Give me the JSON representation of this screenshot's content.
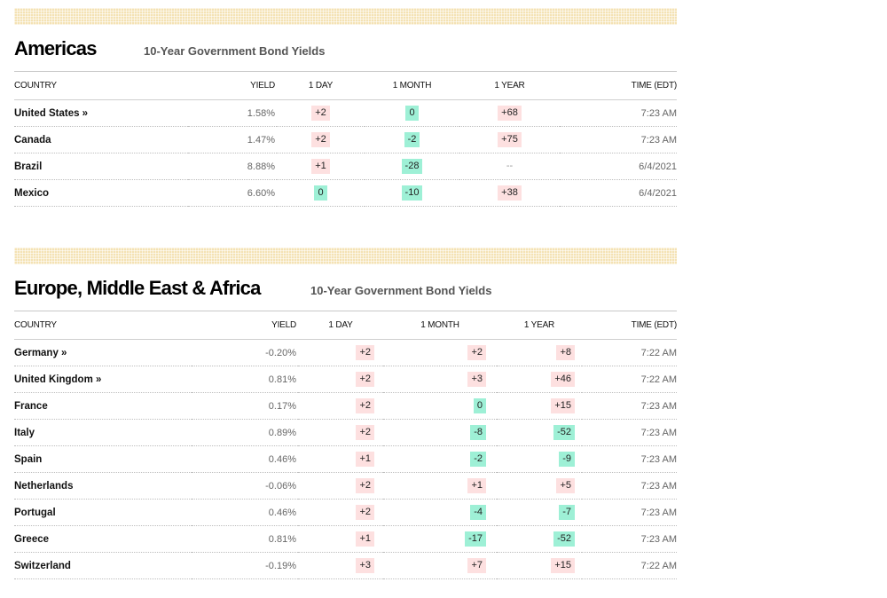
{
  "colors": {
    "up": "#fde0e0",
    "down": "#9ef0d6",
    "stripe": "#f4e2b4"
  },
  "americas": {
    "title": "Americas",
    "subtitle": "10-Year Government Bond Yields",
    "headers": {
      "country": "COUNTRY",
      "yield": "YIELD",
      "day": "1 DAY",
      "month": "1 MONTH",
      "year": "1 YEAR",
      "time": "TIME (EDT)"
    },
    "rows": [
      {
        "country": "United States »",
        "yield": "1.58%",
        "day": "+2",
        "day_dir": "up",
        "month": "0",
        "month_dir": "down",
        "year": "+68",
        "year_dir": "up",
        "time": "7:23 AM"
      },
      {
        "country": "Canada",
        "yield": "1.47%",
        "day": "+2",
        "day_dir": "up",
        "month": "-2",
        "month_dir": "down",
        "year": "+75",
        "year_dir": "up",
        "time": "7:23 AM"
      },
      {
        "country": "Brazil",
        "yield": "8.88%",
        "day": "+1",
        "day_dir": "up",
        "month": "-28",
        "month_dir": "down",
        "year": "--",
        "year_dir": "none",
        "time": "6/4/2021"
      },
      {
        "country": "Mexico",
        "yield": "6.60%",
        "day": "0",
        "day_dir": "down",
        "month": "-10",
        "month_dir": "down",
        "year": "+38",
        "year_dir": "up",
        "time": "6/4/2021"
      }
    ]
  },
  "emea": {
    "title": "Europe, Middle East & Africa",
    "subtitle": "10-Year Government Bond Yields",
    "headers": {
      "country": "COUNTRY",
      "yield": "YIELD",
      "day": "1 DAY",
      "month": "1 MONTH",
      "year": "1 YEAR",
      "time": "TIME (EDT)"
    },
    "rows": [
      {
        "country": "Germany »",
        "yield": "-0.20%",
        "day": "+2",
        "day_dir": "up",
        "month": "+2",
        "month_dir": "up",
        "year": "+8",
        "year_dir": "up",
        "time": "7:22 AM"
      },
      {
        "country": "United Kingdom »",
        "yield": "0.81%",
        "day": "+2",
        "day_dir": "up",
        "month": "+3",
        "month_dir": "up",
        "year": "+46",
        "year_dir": "up",
        "time": "7:22 AM"
      },
      {
        "country": "France",
        "yield": "0.17%",
        "day": "+2",
        "day_dir": "up",
        "month": "0",
        "month_dir": "down",
        "year": "+15",
        "year_dir": "up",
        "time": "7:23 AM"
      },
      {
        "country": "Italy",
        "yield": "0.89%",
        "day": "+2",
        "day_dir": "up",
        "month": "-8",
        "month_dir": "down",
        "year": "-52",
        "year_dir": "down",
        "time": "7:23 AM"
      },
      {
        "country": "Spain",
        "yield": "0.46%",
        "day": "+1",
        "day_dir": "up",
        "month": "-2",
        "month_dir": "down",
        "year": "-9",
        "year_dir": "down",
        "time": "7:23 AM"
      },
      {
        "country": "Netherlands",
        "yield": "-0.06%",
        "day": "+2",
        "day_dir": "up",
        "month": "+1",
        "month_dir": "up",
        "year": "+5",
        "year_dir": "up",
        "time": "7:23 AM"
      },
      {
        "country": "Portugal",
        "yield": "0.46%",
        "day": "+2",
        "day_dir": "up",
        "month": "-4",
        "month_dir": "down",
        "year": "-7",
        "year_dir": "down",
        "time": "7:23 AM"
      },
      {
        "country": "Greece",
        "yield": "0.81%",
        "day": "+1",
        "day_dir": "up",
        "month": "-17",
        "month_dir": "down",
        "year": "-52",
        "year_dir": "down",
        "time": "7:23 AM"
      },
      {
        "country": "Switzerland",
        "yield": "-0.19%",
        "day": "+3",
        "day_dir": "up",
        "month": "+7",
        "month_dir": "up",
        "year": "+15",
        "year_dir": "up",
        "time": "7:22 AM"
      }
    ]
  }
}
